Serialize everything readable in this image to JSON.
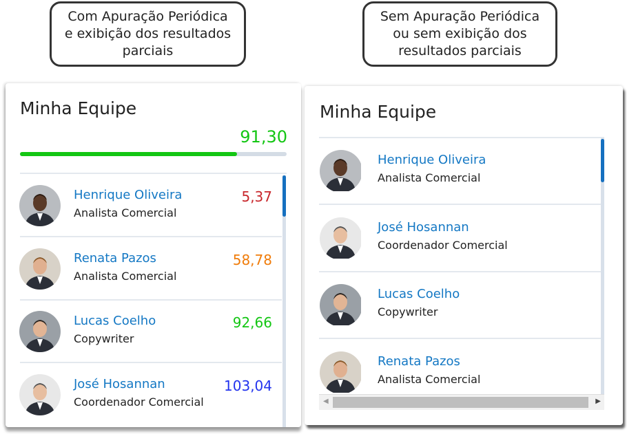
{
  "callouts": {
    "left": "Com Apuração Periódica\ne exibição dos resultados\nparciais",
    "right": "Sem Apuração Periódica\nou sem exibição dos\nresultados parciais"
  },
  "left_panel": {
    "title": "Minha Equipe",
    "total": "91,30",
    "progress_percent": 81.5,
    "members": [
      {
        "name": "Henrique Oliveira",
        "role": "Analista Comercial",
        "score": "5,37",
        "score_color": "#c8262b"
      },
      {
        "name": "Renata Pazos",
        "role": "Analista Comercial",
        "score": "58,78",
        "score_color": "#f07c0a"
      },
      {
        "name": "Lucas Coelho",
        "role": "Copywriter",
        "score": "92,66",
        "score_color": "#13c613"
      },
      {
        "name": "José Hosannan",
        "role": "Coordenador Comercial",
        "score": "103,04",
        "score_color": "#2233ee"
      }
    ]
  },
  "right_panel": {
    "title": "Minha Equipe",
    "members": [
      {
        "name": "Henrique Oliveira",
        "role": "Analista Comercial"
      },
      {
        "name": "José Hosannan",
        "role": "Coordenador Comercial"
      },
      {
        "name": "Lucas Coelho",
        "role": "Copywriter"
      },
      {
        "name": "Renata Pazos",
        "role": "Analista Comercial"
      }
    ]
  }
}
